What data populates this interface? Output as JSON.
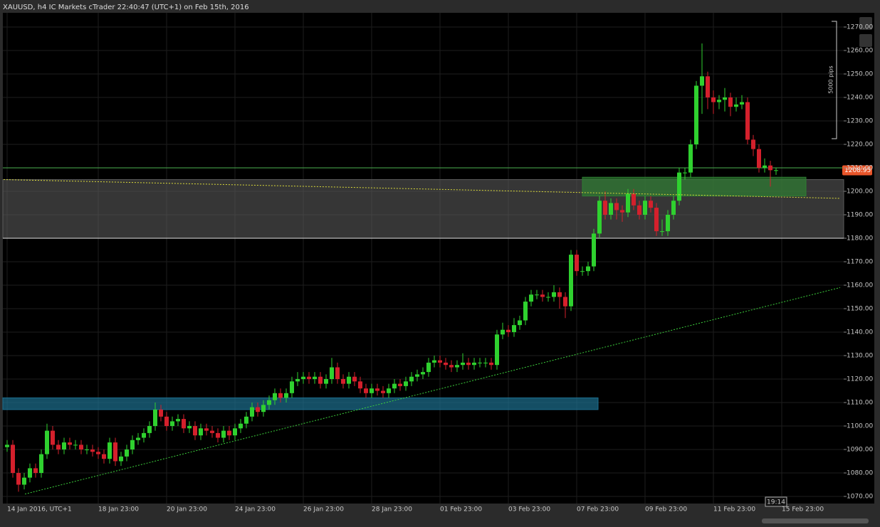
{
  "chart_data": {
    "type": "candlestick",
    "title": "XAUUSD, h4 IC Markets cTrader 22:40:47 (UTC+1) on Feb 15th, 2016",
    "up_color": "#2fd12f",
    "down_color": "#d4202c",
    "candles": [
      [
        1091,
        1094,
        1089,
        1092
      ],
      [
        1092,
        1094,
        1078,
        1080
      ],
      [
        1080,
        1082,
        1072,
        1075
      ],
      [
        1075,
        1080,
        1073,
        1078
      ],
      [
        1078,
        1084,
        1076,
        1082
      ],
      [
        1082,
        1084,
        1078,
        1080
      ],
      [
        1080,
        1090,
        1078,
        1088
      ],
      [
        1088,
        1101,
        1086,
        1098
      ],
      [
        1098,
        1100,
        1090,
        1092
      ],
      [
        1092,
        1094,
        1088,
        1090
      ],
      [
        1090,
        1095,
        1088,
        1093
      ],
      [
        1093,
        1095,
        1090,
        1092
      ],
      [
        1092,
        1094,
        1090,
        1092
      ],
      [
        1092,
        1094,
        1088,
        1090
      ],
      [
        1090,
        1092,
        1088,
        1090
      ],
      [
        1090,
        1092,
        1087,
        1089
      ],
      [
        1089,
        1091,
        1086,
        1088
      ],
      [
        1088,
        1090,
        1084,
        1086
      ],
      [
        1086,
        1095,
        1084,
        1093
      ],
      [
        1093,
        1095,
        1083,
        1085
      ],
      [
        1085,
        1089,
        1083,
        1087
      ],
      [
        1087,
        1092,
        1085,
        1090
      ],
      [
        1090,
        1096,
        1088,
        1094
      ],
      [
        1094,
        1097,
        1092,
        1095
      ],
      [
        1095,
        1099,
        1093,
        1097
      ],
      [
        1097,
        1102,
        1095,
        1100
      ],
      [
        1100,
        1110,
        1098,
        1107
      ],
      [
        1107,
        1109,
        1102,
        1104
      ],
      [
        1104,
        1106,
        1098,
        1100
      ],
      [
        1100,
        1104,
        1098,
        1102
      ],
      [
        1102,
        1105,
        1100,
        1103
      ],
      [
        1103,
        1105,
        1097,
        1099
      ],
      [
        1099,
        1102,
        1097,
        1100
      ],
      [
        1100,
        1102,
        1094,
        1096
      ],
      [
        1096,
        1101,
        1094,
        1099
      ],
      [
        1099,
        1101,
        1096,
        1098
      ],
      [
        1098,
        1100,
        1095,
        1097
      ],
      [
        1097,
        1099,
        1093,
        1095
      ],
      [
        1095,
        1100,
        1093,
        1098
      ],
      [
        1098,
        1100,
        1094,
        1096
      ],
      [
        1096,
        1101,
        1094,
        1099
      ],
      [
        1099,
        1103,
        1097,
        1101
      ],
      [
        1101,
        1106,
        1099,
        1104
      ],
      [
        1104,
        1110,
        1102,
        1108
      ],
      [
        1108,
        1110,
        1104,
        1106
      ],
      [
        1106,
        1111,
        1104,
        1109
      ],
      [
        1109,
        1113,
        1107,
        1111
      ],
      [
        1111,
        1116,
        1109,
        1114
      ],
      [
        1114,
        1116,
        1110,
        1112
      ],
      [
        1112,
        1116,
        1110,
        1114
      ],
      [
        1114,
        1121,
        1112,
        1119
      ],
      [
        1119,
        1123,
        1117,
        1120
      ],
      [
        1120,
        1123,
        1118,
        1121
      ],
      [
        1121,
        1123,
        1118,
        1120
      ],
      [
        1120,
        1123,
        1118,
        1121
      ],
      [
        1121,
        1123,
        1116,
        1118
      ],
      [
        1118,
        1122,
        1116,
        1120
      ],
      [
        1120,
        1129,
        1118,
        1125
      ],
      [
        1125,
        1127,
        1118,
        1120
      ],
      [
        1120,
        1122,
        1116,
        1118
      ],
      [
        1118,
        1123,
        1116,
        1121
      ],
      [
        1121,
        1123,
        1117,
        1119
      ],
      [
        1119,
        1121,
        1114,
        1116
      ],
      [
        1116,
        1118,
        1112,
        1114
      ],
      [
        1114,
        1118,
        1112,
        1116
      ],
      [
        1116,
        1118,
        1113,
        1115
      ],
      [
        1115,
        1117,
        1112,
        1114
      ],
      [
        1114,
        1118,
        1112,
        1116
      ],
      [
        1116,
        1120,
        1114,
        1118
      ],
      [
        1118,
        1120,
        1115,
        1117
      ],
      [
        1117,
        1121,
        1115,
        1119
      ],
      [
        1119,
        1123,
        1117,
        1121
      ],
      [
        1121,
        1124,
        1119,
        1122
      ],
      [
        1122,
        1125,
        1120,
        1123
      ],
      [
        1123,
        1129,
        1121,
        1127
      ],
      [
        1127,
        1130,
        1125,
        1128
      ],
      [
        1128,
        1130,
        1125,
        1127
      ],
      [
        1127,
        1129,
        1124,
        1126
      ],
      [
        1126,
        1128,
        1123,
        1125
      ],
      [
        1125,
        1128,
        1123,
        1126
      ],
      [
        1126,
        1131,
        1124,
        1127
      ],
      [
        1127,
        1129,
        1124,
        1126
      ],
      [
        1126,
        1129,
        1124,
        1127
      ],
      [
        1127,
        1129,
        1125,
        1127
      ],
      [
        1127,
        1129,
        1125,
        1127
      ],
      [
        1127,
        1129,
        1124,
        1126
      ],
      [
        1126,
        1141,
        1124,
        1139
      ],
      [
        1139,
        1144,
        1137,
        1141
      ],
      [
        1141,
        1143,
        1138,
        1140
      ],
      [
        1140,
        1146,
        1138,
        1143
      ],
      [
        1143,
        1147,
        1141,
        1145
      ],
      [
        1145,
        1155,
        1143,
        1153
      ],
      [
        1153,
        1158,
        1151,
        1156
      ],
      [
        1156,
        1158,
        1154,
        1156
      ],
      [
        1156,
        1158,
        1153,
        1155
      ],
      [
        1155,
        1157,
        1153,
        1155
      ],
      [
        1155,
        1160,
        1153,
        1157
      ],
      [
        1157,
        1159,
        1150,
        1155
      ],
      [
        1155,
        1157,
        1146,
        1151
      ],
      [
        1151,
        1175,
        1149,
        1173
      ],
      [
        1173,
        1175,
        1164,
        1166
      ],
      [
        1166,
        1168,
        1164,
        1166
      ],
      [
        1166,
        1170,
        1164,
        1168
      ],
      [
        1168,
        1184,
        1166,
        1182
      ],
      [
        1182,
        1198,
        1180,
        1196
      ],
      [
        1196,
        1200,
        1188,
        1190
      ],
      [
        1190,
        1197,
        1188,
        1195
      ],
      [
        1195,
        1197,
        1188,
        1192
      ],
      [
        1192,
        1194,
        1187,
        1191
      ],
      [
        1191,
        1201,
        1189,
        1199
      ],
      [
        1199,
        1201,
        1192,
        1194
      ],
      [
        1194,
        1196,
        1188,
        1190
      ],
      [
        1190,
        1198,
        1188,
        1196
      ],
      [
        1196,
        1198,
        1191,
        1193
      ],
      [
        1193,
        1195,
        1181,
        1183
      ],
      [
        1183,
        1188,
        1181,
        1183
      ],
      [
        1183,
        1192,
        1181,
        1190
      ],
      [
        1190,
        1198,
        1188,
        1196
      ],
      [
        1196,
        1210,
        1194,
        1208
      ],
      [
        1208,
        1210,
        1205,
        1208
      ],
      [
        1208,
        1222,
        1206,
        1220
      ],
      [
        1220,
        1247,
        1218,
        1245
      ],
      [
        1245,
        1263,
        1233,
        1249
      ],
      [
        1249,
        1251,
        1235,
        1240
      ],
      [
        1240,
        1243,
        1233,
        1238
      ],
      [
        1238,
        1241,
        1235,
        1239
      ],
      [
        1239,
        1244,
        1234,
        1240
      ],
      [
        1240,
        1242,
        1232,
        1236
      ],
      [
        1236,
        1240,
        1234,
        1237
      ],
      [
        1237,
        1241,
        1235,
        1238
      ],
      [
        1238,
        1240,
        1220,
        1222
      ],
      [
        1222,
        1224,
        1215,
        1218
      ],
      [
        1218,
        1220,
        1208,
        1210
      ],
      [
        1210,
        1214,
        1208,
        1211
      ],
      [
        1211,
        1213,
        1202,
        1209
      ],
      [
        1209,
        1210,
        1207,
        1209
      ]
    ],
    "ylim": [
      1070,
      1270
    ],
    "yticks": [
      {
        "value": 1070,
        "label": "1070.00"
      },
      {
        "value": 1080,
        "label": "1080.00"
      },
      {
        "value": 1090,
        "label": "1090.00"
      },
      {
        "value": 1100,
        "label": "1100.00"
      },
      {
        "value": 1110,
        "label": "1110.00"
      },
      {
        "value": 1120,
        "label": "1120.00"
      },
      {
        "value": 1130,
        "label": "1130.00"
      },
      {
        "value": 1140,
        "label": "1140.00"
      },
      {
        "value": 1150,
        "label": "1150.00"
      },
      {
        "value": 1160,
        "label": "1160.00"
      },
      {
        "value": 1170,
        "label": "1170.00"
      },
      {
        "value": 1180,
        "label": "1180.00"
      },
      {
        "value": 1190,
        "label": "1190.00"
      },
      {
        "value": 1200,
        "label": "1200.00"
      },
      {
        "value": 1210,
        "label": "1210.00"
      },
      {
        "value": 1220,
        "label": "1220.00"
      },
      {
        "value": 1230,
        "label": "1230.00"
      },
      {
        "value": 1240,
        "label": "1240.00"
      },
      {
        "value": 1250,
        "label": "1250.00"
      },
      {
        "value": 1260,
        "label": "1260.00"
      },
      {
        "value": 1270,
        "label": "1270.00"
      }
    ],
    "xticks": [
      {
        "value": 0,
        "label": "14 Jan 2016, UTC+1"
      },
      {
        "value": 16,
        "label": "18 Jan 23:00"
      },
      {
        "value": 28,
        "label": "20 Jan 23:00"
      },
      {
        "value": 40,
        "label": "24 Jan 23:00"
      },
      {
        "value": 52,
        "label": "26 Jan 23:00"
      },
      {
        "value": 64,
        "label": "28 Jan 23:00"
      },
      {
        "value": 76,
        "label": "01 Feb 23:00"
      },
      {
        "value": 88,
        "label": "03 Feb 23:00"
      },
      {
        "value": 100,
        "label": "07 Feb 23:00"
      },
      {
        "value": 112,
        "label": "09 Feb 23:00"
      },
      {
        "value": 124,
        "label": "11 Feb 23:00"
      },
      {
        "value": 136,
        "label": "15 Feb 23:00"
      }
    ],
    "grid": true,
    "current_price": 1208.95,
    "current_price_color": "#e8552a",
    "cursor_time": "19:14",
    "ruler_label": "5000 pips",
    "levels": [
      {
        "value": 1210,
        "color": "#4caf50"
      },
      {
        "value": 1180,
        "color": "#e0e0e0"
      }
    ],
    "zones": [
      {
        "low": 1180,
        "high": 1205,
        "color": "#5a5a5a"
      },
      {
        "low": 1107,
        "high": 1112,
        "color": "#1d6f8f"
      },
      {
        "low": 1198,
        "high": 1206,
        "color": "#2e7d32"
      }
    ],
    "trendlines": [
      {
        "values": [
          1071,
          1159
        ],
        "color": "#3ccf3c"
      },
      {
        "values": [
          1205,
          1197
        ],
        "color": "#d8d83a"
      }
    ]
  }
}
